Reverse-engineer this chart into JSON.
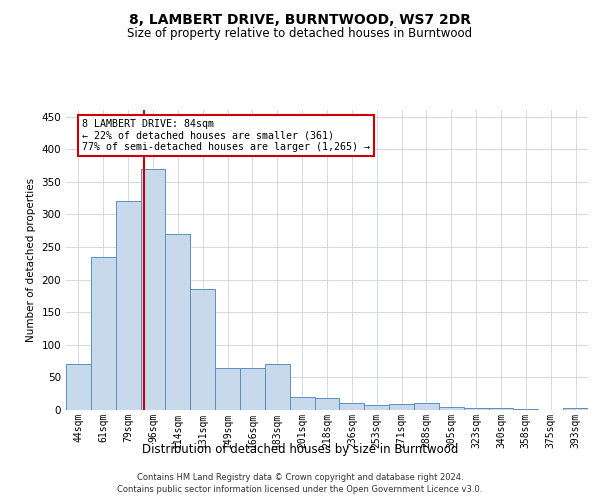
{
  "title": "8, LAMBERT DRIVE, BURNTWOOD, WS7 2DR",
  "subtitle": "Size of property relative to detached houses in Burntwood",
  "xlabel": "Distribution of detached houses by size in Burntwood",
  "ylabel": "Number of detached properties",
  "categories": [
    "44sqm",
    "61sqm",
    "79sqm",
    "96sqm",
    "114sqm",
    "131sqm",
    "149sqm",
    "166sqm",
    "183sqm",
    "201sqm",
    "218sqm",
    "236sqm",
    "253sqm",
    "271sqm",
    "288sqm",
    "305sqm",
    "323sqm",
    "340sqm",
    "358sqm",
    "375sqm",
    "393sqm"
  ],
  "values": [
    70,
    235,
    320,
    370,
    270,
    185,
    65,
    65,
    70,
    20,
    18,
    10,
    7,
    9,
    10,
    5,
    3,
    3,
    1,
    0,
    3
  ],
  "bar_color": "#c9d9ec",
  "bar_edge_color": "#5a8fc3",
  "red_line_index": 2.62,
  "annotation_title": "8 LAMBERT DRIVE: 84sqm",
  "annotation_line1": "← 22% of detached houses are smaller (361)",
  "annotation_line2": "77% of semi-detached houses are larger (1,265) →",
  "annotation_box_color": "#ffffff",
  "annotation_box_edge": "#cc0000",
  "ylim": [
    0,
    460
  ],
  "yticks": [
    0,
    50,
    100,
    150,
    200,
    250,
    300,
    350,
    400,
    450
  ],
  "footer1": "Contains HM Land Registry data © Crown copyright and database right 2024.",
  "footer2": "Contains public sector information licensed under the Open Government Licence v3.0.",
  "background_color": "#ffffff",
  "grid_color": "#c8d4e3"
}
